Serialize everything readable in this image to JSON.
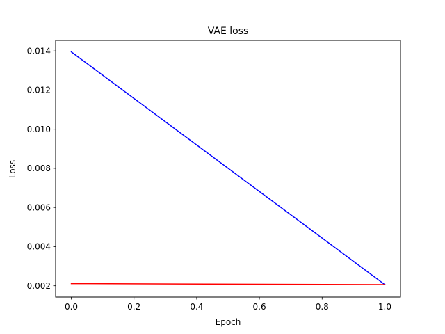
{
  "chart_data": {
    "type": "line",
    "title": "VAE loss",
    "xlabel": "Epoch",
    "ylabel": "Loss",
    "xlim": [
      -0.05,
      1.05
    ],
    "ylim": [
      0.00142,
      0.01454
    ],
    "x_ticks": [
      0.0,
      0.2,
      0.4,
      0.6,
      0.8,
      1.0
    ],
    "x_tick_labels": [
      "0.0",
      "0.2",
      "0.4",
      "0.6",
      "0.8",
      "1.0"
    ],
    "y_ticks": [
      0.002,
      0.004,
      0.006,
      0.008,
      0.01,
      0.012,
      0.014
    ],
    "y_tick_labels": [
      "0.002",
      "0.004",
      "0.006",
      "0.008",
      "0.010",
      "0.012",
      "0.014"
    ],
    "grid": false,
    "legend": "none",
    "x": [
      0,
      1
    ],
    "series": [
      {
        "color": "#0000ff",
        "values": [
          0.01395,
          0.00206
        ]
      },
      {
        "color": "#ff0000",
        "values": [
          0.00211,
          0.00206
        ]
      }
    ]
  }
}
